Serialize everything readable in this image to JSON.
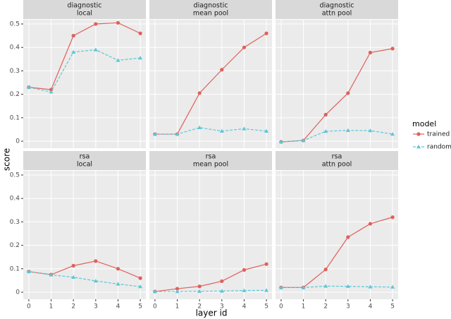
{
  "y_label": "score",
  "x_label": "layer id",
  "legend_title": "model",
  "chart_data": [
    {
      "type": "line",
      "title": "diagnostic",
      "subtitle": "local",
      "x": [
        0,
        1,
        2,
        3,
        4,
        5
      ],
      "xlim": [
        -0.25,
        5.25
      ],
      "xticks": [
        0,
        1,
        2,
        3,
        4,
        5
      ],
      "ylim": [
        -0.03,
        0.518
      ],
      "yticks": [
        0,
        0.1,
        0.2,
        0.3,
        0.4,
        0.5
      ],
      "grid": true,
      "series": [
        {
          "name": "trained",
          "color": "#e0605a",
          "marker": "circle",
          "dashed": false,
          "values": [
            0.23,
            0.22,
            0.45,
            0.5,
            0.505,
            0.46
          ]
        },
        {
          "name": "random",
          "color": "#5bc8d8",
          "marker": "triangle",
          "dashed": true,
          "values": [
            0.23,
            0.21,
            0.38,
            0.39,
            0.345,
            0.355
          ]
        }
      ]
    },
    {
      "type": "line",
      "title": "diagnostic",
      "subtitle": "mean pool",
      "x": [
        0,
        1,
        2,
        3,
        4,
        5
      ],
      "xlim": [
        -0.25,
        5.25
      ],
      "xticks": [
        0,
        1,
        2,
        3,
        4,
        5
      ],
      "ylim": [
        -0.03,
        0.518
      ],
      "yticks": [
        0,
        0.1,
        0.2,
        0.3,
        0.4,
        0.5
      ],
      "grid": true,
      "series": [
        {
          "name": "trained",
          "color": "#e0605a",
          "marker": "circle",
          "dashed": false,
          "values": [
            0.03,
            0.03,
            0.205,
            0.305,
            0.4,
            0.46
          ]
        },
        {
          "name": "random",
          "color": "#5bc8d8",
          "marker": "triangle",
          "dashed": true,
          "values": [
            0.03,
            0.03,
            0.058,
            0.043,
            0.053,
            0.043
          ]
        }
      ]
    },
    {
      "type": "line",
      "title": "diagnostic",
      "subtitle": "attn pool",
      "x": [
        0,
        1,
        2,
        3,
        4,
        5
      ],
      "xlim": [
        -0.25,
        5.25
      ],
      "xticks": [
        0,
        1,
        2,
        3,
        4,
        5
      ],
      "ylim": [
        -0.03,
        0.518
      ],
      "yticks": [
        0,
        0.1,
        0.2,
        0.3,
        0.4,
        0.5
      ],
      "grid": true,
      "series": [
        {
          "name": "trained",
          "color": "#e0605a",
          "marker": "circle",
          "dashed": false,
          "values": [
            -0.003,
            0.003,
            0.113,
            0.205,
            0.378,
            0.395
          ]
        },
        {
          "name": "random",
          "color": "#5bc8d8",
          "marker": "triangle",
          "dashed": true,
          "values": [
            -0.003,
            0.003,
            0.042,
            0.046,
            0.045,
            0.03
          ]
        }
      ]
    },
    {
      "type": "line",
      "title": "rsa",
      "subtitle": "local",
      "x": [
        0,
        1,
        2,
        3,
        4,
        5
      ],
      "xlim": [
        -0.25,
        5.25
      ],
      "xticks": [
        0,
        1,
        2,
        3,
        4,
        5
      ],
      "ylim": [
        -0.03,
        0.518
      ],
      "yticks": [
        0,
        0.1,
        0.2,
        0.3,
        0.4,
        0.5
      ],
      "grid": true,
      "series": [
        {
          "name": "trained",
          "color": "#e0605a",
          "marker": "circle",
          "dashed": false,
          "values": [
            0.088,
            0.075,
            0.113,
            0.133,
            0.1,
            0.06
          ]
        },
        {
          "name": "random",
          "color": "#5bc8d8",
          "marker": "triangle",
          "dashed": true,
          "values": [
            0.088,
            0.074,
            0.064,
            0.048,
            0.035,
            0.024
          ]
        }
      ]
    },
    {
      "type": "line",
      "title": "rsa",
      "subtitle": "mean pool",
      "x": [
        0,
        1,
        2,
        3,
        4,
        5
      ],
      "xlim": [
        -0.25,
        5.25
      ],
      "xticks": [
        0,
        1,
        2,
        3,
        4,
        5
      ],
      "ylim": [
        -0.03,
        0.518
      ],
      "yticks": [
        0,
        0.1,
        0.2,
        0.3,
        0.4,
        0.5
      ],
      "grid": true,
      "series": [
        {
          "name": "trained",
          "color": "#e0605a",
          "marker": "circle",
          "dashed": false,
          "values": [
            0.003,
            0.015,
            0.025,
            0.047,
            0.095,
            0.12
          ]
        },
        {
          "name": "random",
          "color": "#5bc8d8",
          "marker": "triangle",
          "dashed": true,
          "values": [
            0.003,
            0.003,
            0.004,
            0.005,
            0.007,
            0.008
          ]
        }
      ]
    },
    {
      "type": "line",
      "title": "rsa",
      "subtitle": "attn pool",
      "x": [
        0,
        1,
        2,
        3,
        4,
        5
      ],
      "xlim": [
        -0.25,
        5.25
      ],
      "xticks": [
        0,
        1,
        2,
        3,
        4,
        5
      ],
      "ylim": [
        -0.03,
        0.518
      ],
      "yticks": [
        0,
        0.1,
        0.2,
        0.3,
        0.4,
        0.5
      ],
      "grid": true,
      "series": [
        {
          "name": "trained",
          "color": "#e0605a",
          "marker": "circle",
          "dashed": false,
          "values": [
            0.02,
            0.02,
            0.097,
            0.235,
            0.292,
            0.32
          ]
        },
        {
          "name": "random",
          "color": "#5bc8d8",
          "marker": "triangle",
          "dashed": true,
          "values": [
            0.02,
            0.02,
            0.026,
            0.025,
            0.023,
            0.022
          ]
        }
      ]
    }
  ]
}
